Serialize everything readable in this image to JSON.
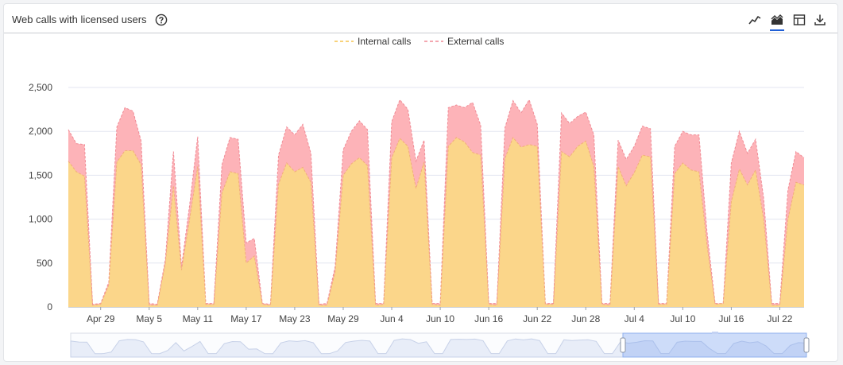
{
  "widget": {
    "title": "Web calls with licensed users",
    "toolbar": [
      "line-chart-icon",
      "stacked-area-chart-icon",
      "table-view-icon",
      "download-icon"
    ],
    "active_view": "stacked-area-chart-icon"
  },
  "colors": {
    "internal": "#f5c34e",
    "internal_fill": "#fbd68a",
    "external": "#f08a95",
    "external_fill": "#fdb3b8",
    "grid": "#e3e6f0",
    "axis_text": "#444444",
    "accent": "#1f5fd6"
  },
  "chart_data": {
    "type": "area",
    "stacked": true,
    "x_start": "Apr 25",
    "x_end": "Jul 26",
    "x_tick_labels": [
      "Apr 29",
      "May 5",
      "May 11",
      "May 17",
      "May 23",
      "May 29",
      "Jun 4",
      "Jun 10",
      "Jun 16",
      "Jun 22",
      "Jun 28",
      "Jul 4",
      "Jul 10",
      "Jul 16",
      "Jul 22"
    ],
    "y_tick_labels": [
      "0",
      "500",
      "1,000",
      "1,500",
      "2,000",
      "2,500"
    ],
    "ylim": [
      0,
      2500
    ],
    "grid": true,
    "legend_position": "top-center",
    "series": [
      {
        "name": "Internal calls",
        "values": [
          1660,
          1540,
          1490,
          20,
          30,
          250,
          1650,
          1780,
          1780,
          1620,
          20,
          20,
          500,
          1380,
          420,
          1000,
          1600,
          30,
          30,
          1300,
          1540,
          1520,
          500,
          580,
          30,
          20,
          1400,
          1640,
          1540,
          1590,
          1420,
          20,
          20,
          400,
          1500,
          1630,
          1700,
          1610,
          20,
          30,
          1700,
          1920,
          1830,
          1350,
          1650,
          30,
          20,
          1830,
          1930,
          1880,
          1760,
          1730,
          30,
          20,
          1690,
          1930,
          1820,
          1850,
          1830,
          30,
          30,
          1770,
          1710,
          1830,
          1890,
          1600,
          30,
          20,
          1600,
          1380,
          1530,
          1730,
          1710,
          30,
          30,
          1520,
          1640,
          1560,
          1540,
          700,
          30,
          40,
          1200,
          1570,
          1390,
          1560,
          1000,
          20,
          20,
          1000,
          1420,
          1390
        ],
        "totals": [
          2020,
          1860,
          1850,
          30,
          40,
          280,
          2050,
          2270,
          2230,
          1890,
          40,
          30,
          540,
          1770,
          460,
          1160,
          1940,
          40,
          40,
          1620,
          1930,
          1910,
          730,
          780,
          40,
          30,
          1730,
          2050,
          1960,
          2080,
          1750,
          30,
          40,
          460,
          1790,
          2000,
          2120,
          2020,
          40,
          40,
          2110,
          2360,
          2250,
          1660,
          1900,
          40,
          40,
          2270,
          2300,
          2270,
          2330,
          2070,
          40,
          40,
          2040,
          2350,
          2210,
          2360,
          2080,
          40,
          40,
          2210,
          2090,
          2170,
          2220,
          1960,
          40,
          40,
          1900,
          1680,
          1830,
          2060,
          2030,
          40,
          40,
          1830,
          2000,
          1960,
          1960,
          850,
          40,
          40,
          1640,
          2000,
          1750,
          1910,
          1240,
          40,
          40,
          1330,
          1770,
          1700
        ]
      },
      {
        "name": "External calls",
        "values": [
          360,
          320,
          360,
          10,
          10,
          30,
          400,
          490,
          450,
          270,
          20,
          10,
          40,
          390,
          40,
          160,
          340,
          10,
          10,
          320,
          390,
          390,
          230,
          200,
          10,
          10,
          330,
          410,
          420,
          490,
          330,
          10,
          20,
          60,
          290,
          370,
          420,
          410,
          20,
          10,
          410,
          440,
          420,
          310,
          250,
          10,
          20,
          440,
          370,
          390,
          570,
          340,
          10,
          20,
          350,
          420,
          390,
          510,
          250,
          10,
          10,
          440,
          380,
          340,
          330,
          360,
          10,
          20,
          300,
          300,
          300,
          330,
          320,
          10,
          10,
          310,
          360,
          400,
          420,
          150,
          10,
          0,
          440,
          430,
          360,
          350,
          240,
          20,
          20,
          330,
          350,
          310
        ]
      }
    ]
  }
}
